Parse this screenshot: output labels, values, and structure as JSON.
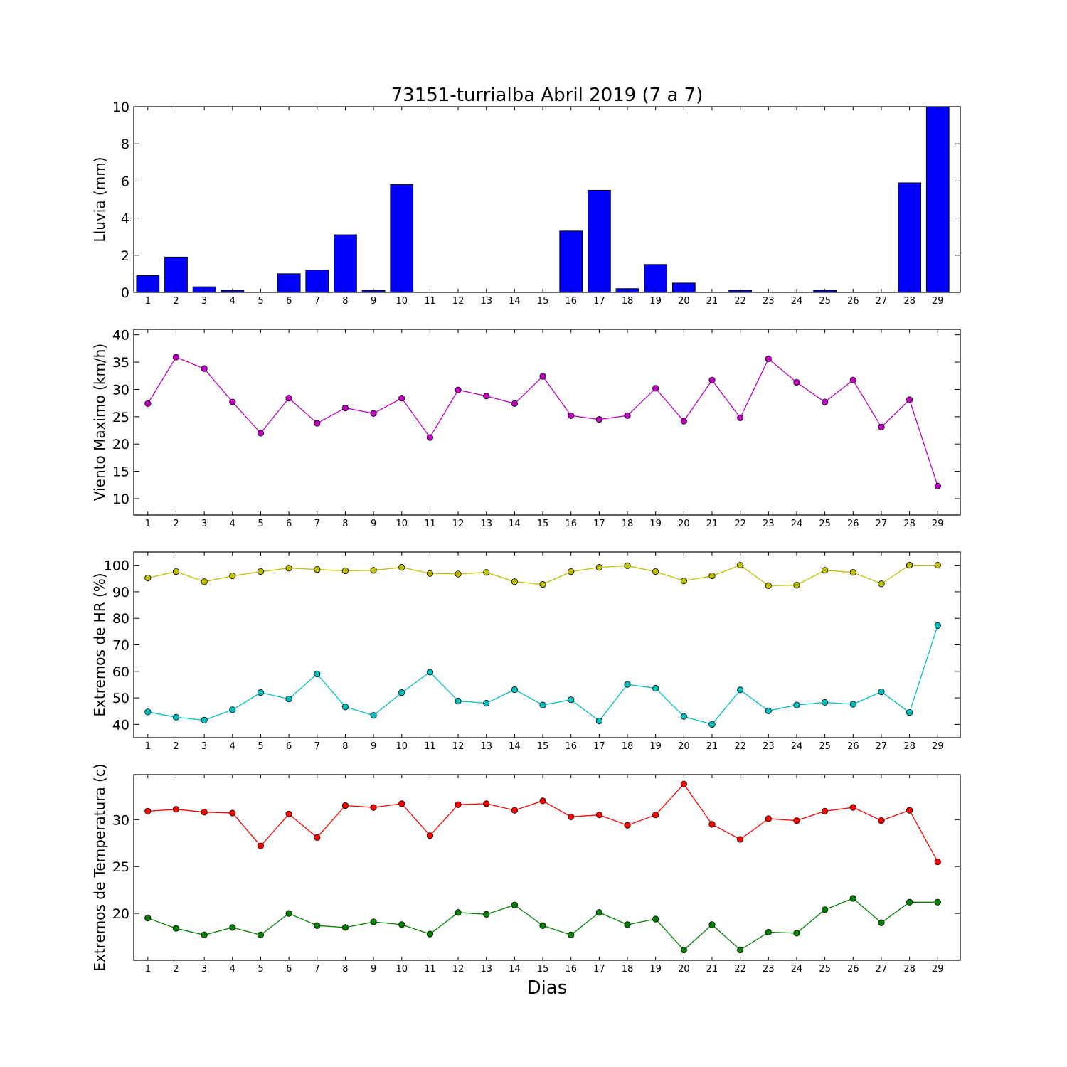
{
  "figure": {
    "title": "73151-turrialba Abril 2019  (7 a 7)",
    "xlabel": "Dias"
  },
  "chart_data": [
    {
      "type": "bar",
      "ylabel": "Lluvia (mm)",
      "ylim": [
        0,
        10
      ],
      "yticks": [
        0,
        2,
        4,
        6,
        8,
        10
      ],
      "categories": [
        1,
        2,
        3,
        4,
        5,
        6,
        7,
        8,
        9,
        10,
        11,
        12,
        13,
        14,
        15,
        16,
        17,
        18,
        19,
        20,
        21,
        22,
        23,
        24,
        25,
        26,
        27,
        28,
        29
      ],
      "values": [
        0.9,
        1.9,
        0.3,
        0.1,
        0,
        1.0,
        1.2,
        3.1,
        0.1,
        5.8,
        0,
        0,
        0,
        0,
        0,
        3.3,
        5.5,
        0.2,
        1.5,
        0.5,
        0,
        0.1,
        0,
        0,
        0.1,
        0,
        0,
        5.9,
        10.0
      ],
      "color": "#0000ff"
    },
    {
      "type": "line",
      "ylabel": "Viento Maximo (km/h)",
      "ylim": [
        7,
        41
      ],
      "yticks": [
        10,
        15,
        20,
        25,
        30,
        35,
        40
      ],
      "x": [
        1,
        2,
        3,
        4,
        5,
        6,
        7,
        8,
        9,
        10,
        11,
        12,
        13,
        14,
        15,
        16,
        17,
        18,
        19,
        20,
        21,
        22,
        23,
        24,
        25,
        26,
        27,
        28,
        29
      ],
      "series": [
        {
          "values": [
            27.4,
            35.9,
            33.8,
            27.7,
            22.0,
            28.4,
            23.8,
            26.6,
            25.6,
            28.4,
            21.2,
            29.9,
            28.8,
            27.4,
            32.4,
            25.2,
            24.5,
            25.2,
            30.2,
            24.2,
            31.7,
            24.8,
            35.6,
            31.3,
            27.7,
            31.7,
            23.1,
            28.1,
            12.3
          ],
          "color": "#bf00bf"
        }
      ]
    },
    {
      "type": "line",
      "ylabel": "Extremos de HR (%)",
      "ylim": [
        35,
        105
      ],
      "yticks": [
        40,
        50,
        60,
        70,
        80,
        90,
        100
      ],
      "x": [
        1,
        2,
        3,
        4,
        5,
        6,
        7,
        8,
        9,
        10,
        11,
        12,
        13,
        14,
        15,
        16,
        17,
        18,
        19,
        20,
        21,
        22,
        23,
        24,
        25,
        26,
        27,
        28,
        29
      ],
      "series": [
        {
          "values": [
            95.2,
            97.6,
            93.8,
            96.0,
            97.6,
            98.9,
            98.4,
            97.9,
            98.1,
            99.2,
            96.9,
            96.7,
            97.3,
            93.8,
            92.8,
            97.6,
            99.2,
            99.8,
            97.6,
            94.1,
            96.0,
            100,
            92.3,
            92.5,
            98.1,
            97.3,
            93.0,
            100,
            100
          ],
          "color": "#bfbf00"
        },
        {
          "values": [
            44.7,
            42.7,
            41.6,
            45.5,
            52.0,
            49.6,
            59.0,
            46.6,
            43.4,
            52.0,
            59.7,
            48.8,
            48.0,
            53.1,
            47.3,
            49.3,
            41.3,
            55.1,
            53.6,
            43.0,
            40.0,
            53.0,
            45.1,
            47.3,
            48.3,
            47.6,
            52.3,
            44.5,
            77.3
          ],
          "color": "#00bfbf"
        }
      ]
    },
    {
      "type": "line",
      "ylabel": "Extremos de Temperatura (c)",
      "ylim": [
        15,
        34.8
      ],
      "yticks": [
        20,
        25,
        30
      ],
      "x": [
        1,
        2,
        3,
        4,
        5,
        6,
        7,
        8,
        9,
        10,
        11,
        12,
        13,
        14,
        15,
        16,
        17,
        18,
        19,
        20,
        21,
        22,
        23,
        24,
        25,
        26,
        27,
        28,
        29
      ],
      "series": [
        {
          "values": [
            30.9,
            31.1,
            30.8,
            30.7,
            27.2,
            30.6,
            28.1,
            31.5,
            31.3,
            31.7,
            28.3,
            31.6,
            31.7,
            31.0,
            32.0,
            30.3,
            30.5,
            29.4,
            30.5,
            33.8,
            29.5,
            27.9,
            30.1,
            29.9,
            30.9,
            31.3,
            29.9,
            31.0,
            25.5
          ],
          "color": "#ff0000"
        },
        {
          "values": [
            19.5,
            18.4,
            17.7,
            18.5,
            17.7,
            20.0,
            18.7,
            18.5,
            19.1,
            18.8,
            17.8,
            20.1,
            19.9,
            20.9,
            18.7,
            17.7,
            20.1,
            18.8,
            19.4,
            16.1,
            18.8,
            16.1,
            18.0,
            17.9,
            20.4,
            21.6,
            19.0,
            21.2,
            21.2
          ],
          "color": "#008000"
        }
      ]
    }
  ]
}
